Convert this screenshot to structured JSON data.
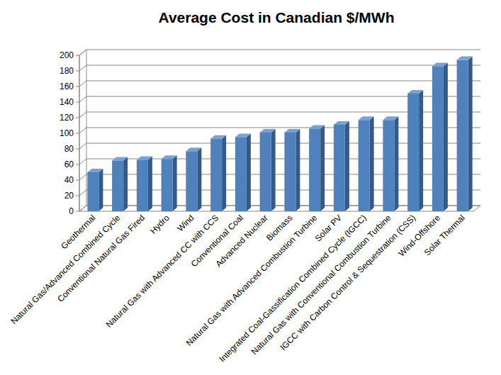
{
  "chart_data": {
    "type": "bar",
    "title": "Average Cost in Canadian $/MWh",
    "categories": [
      "Geothermal",
      "Natural Gas/Advanced Combined Cycle",
      "Conventional Natural Gas Fired",
      "Hydro",
      "Wind",
      "Natural Gas with Advanced CC with CCS",
      "Conventional Coal",
      "Advanced Nuclear",
      "Biomass",
      "Natural Gas with Advanced Combustion Turbine",
      "Solar PV",
      "Integrated Coal-Gassification Combined Cycle (IGCC)",
      "Natural Gas with Conventional Combustion Turbine",
      "IGCC with Carbon Control & Sequestration (CSS)",
      "Wind-Offshore",
      "Solar Thermal"
    ],
    "values": [
      50,
      65,
      66,
      67,
      77,
      93,
      95,
      101,
      101,
      106,
      111,
      117,
      117,
      151,
      186,
      194
    ],
    "color": "#4f81bd",
    "ylim": [
      0,
      200
    ],
    "yticks": [
      0,
      20,
      40,
      60,
      80,
      100,
      120,
      140,
      160,
      180,
      200
    ],
    "grid": true
  }
}
